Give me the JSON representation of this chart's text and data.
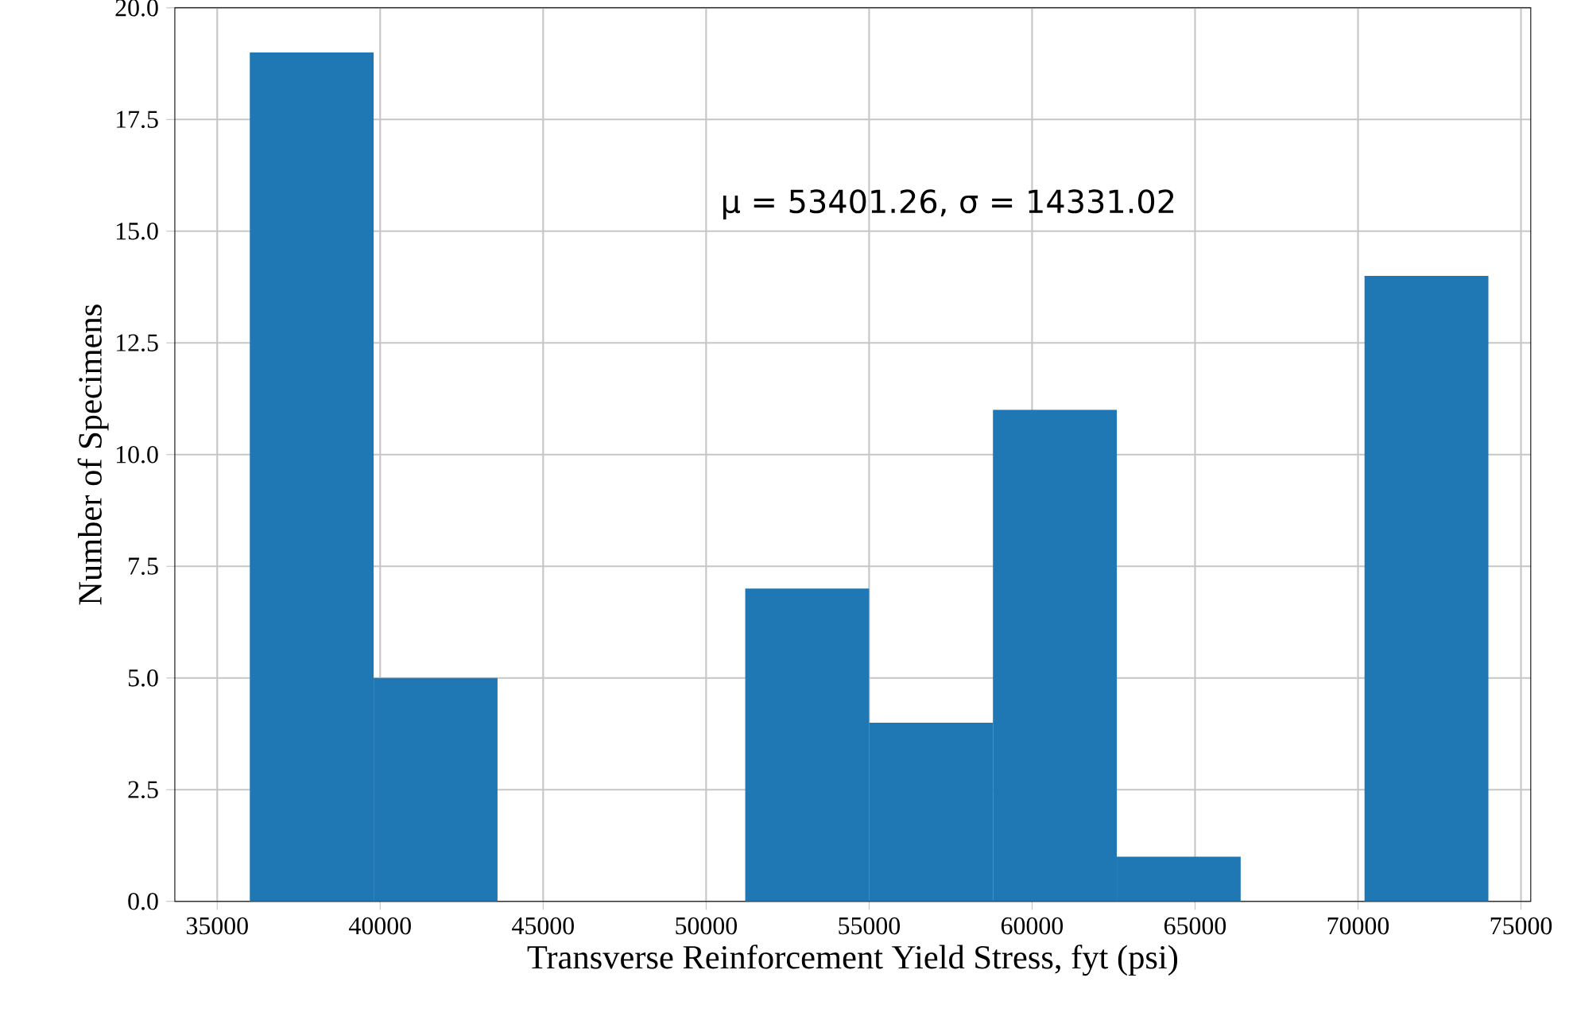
{
  "chart_data": {
    "type": "histogram",
    "xlabel": "Transverse Reinforcement Yield Stress, fyt (psi)",
    "ylabel": "Number of Specimens",
    "bins": [
      36000,
      39800,
      43600,
      47400,
      51200,
      55000,
      58800,
      62600,
      66400,
      70200,
      74000
    ],
    "values": [
      19,
      5,
      0,
      0,
      7,
      4,
      11,
      1,
      0,
      14
    ],
    "color": "#1f77b4",
    "xlim": [
      33700,
      75300
    ],
    "xticks": [
      35000,
      40000,
      45000,
      50000,
      55000,
      60000,
      65000,
      70000,
      75000
    ],
    "ylim": [
      0,
      20
    ],
    "yticks": [
      {
        "value": 0,
        "label": "0.0"
      },
      {
        "value": 2.5,
        "label": "2.5"
      },
      {
        "value": 5,
        "label": "5.0"
      },
      {
        "value": 7.5,
        "label": "7.5"
      },
      {
        "value": 10,
        "label": "10.0"
      },
      {
        "value": 12.5,
        "label": "12.5"
      },
      {
        "value": 15,
        "label": "15.0"
      },
      {
        "value": 17.5,
        "label": "17.5"
      },
      {
        "value": 20,
        "label": "20.0"
      }
    ],
    "grid": true,
    "annotations": [
      "μ = 53401.26, σ = 14331.02"
    ]
  }
}
